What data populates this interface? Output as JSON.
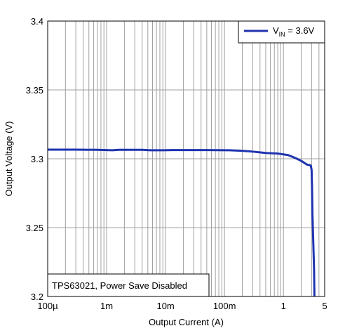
{
  "chart_data": {
    "type": "line",
    "x_scale": "log",
    "xlabel": "Output Current (A)",
    "ylabel": "Output Voltage (V)",
    "xlim": [
      0.0001,
      5
    ],
    "ylim": [
      3.2,
      3.4
    ],
    "grid": true,
    "x_ticks": [
      {
        "value": 0.0001,
        "label": "100µ"
      },
      {
        "value": 0.001,
        "label": "1m"
      },
      {
        "value": 0.01,
        "label": "10m"
      },
      {
        "value": 0.1,
        "label": "100m"
      },
      {
        "value": 1,
        "label": "1"
      },
      {
        "value": 5,
        "label": "5"
      }
    ],
    "y_ticks": [
      {
        "value": 3.2,
        "label": "3.2"
      },
      {
        "value": 3.25,
        "label": "3.25"
      },
      {
        "value": 3.3,
        "label": "3.3"
      },
      {
        "value": 3.35,
        "label": "3.35"
      },
      {
        "value": 3.4,
        "label": "3.4"
      }
    ],
    "legend": {
      "placement": "top-right",
      "entries": [
        {
          "main": "V",
          "sub": "IN",
          "suffix": " = 3.6V"
        }
      ]
    },
    "annotation": "TPS63021, Power Save Disabled",
    "series": [
      {
        "color": "#1f33b0",
        "points": [
          [
            0.0001,
            3.3066
          ],
          [
            0.0003,
            3.3066
          ],
          [
            0.0007,
            3.3065
          ],
          [
            0.00125,
            3.3062
          ],
          [
            0.0016,
            3.3065
          ],
          [
            0.004,
            3.3065
          ],
          [
            0.0055,
            3.3062
          ],
          [
            0.009,
            3.3062
          ],
          [
            0.013,
            3.3063
          ],
          [
            0.05,
            3.3063
          ],
          [
            0.12,
            3.3062
          ],
          [
            0.2,
            3.3058
          ],
          [
            0.3,
            3.3052
          ],
          [
            0.5,
            3.3042
          ],
          [
            0.8,
            3.3038
          ],
          [
            1.2,
            3.3027
          ],
          [
            1.6,
            3.3005
          ],
          [
            2.0,
            3.2985
          ],
          [
            2.5,
            3.2958
          ],
          [
            2.9,
            3.2952
          ],
          [
            3.0,
            3.292
          ],
          [
            3.05,
            3.28
          ],
          [
            3.1,
            3.26
          ],
          [
            3.2,
            3.24
          ],
          [
            3.3,
            3.22
          ],
          [
            3.35,
            3.2
          ]
        ]
      }
    ]
  },
  "colors": {
    "line": "#1f33b0",
    "grid": "#a0a0a0",
    "frame": "#000000"
  }
}
